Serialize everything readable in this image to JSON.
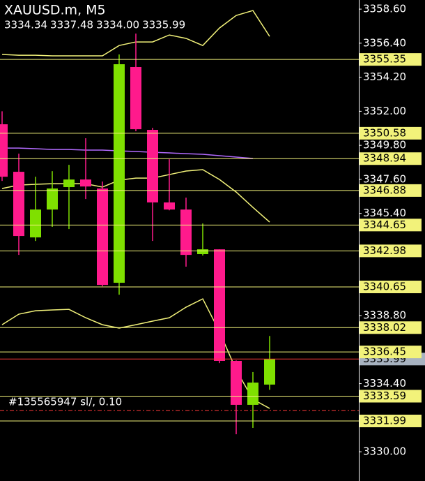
{
  "chart_data": {
    "type": "candlestick",
    "title": "XAUUSD.m, M5",
    "last_bar_labels": [
      "3334.34",
      "3337.48",
      "3334.00",
      "3335.99"
    ],
    "up_color": "#7fe000",
    "down_color": "#ff1a8c",
    "open": [
      3351.16,
      3348.09,
      3343.85,
      3345.65,
      3347.1,
      3347.59,
      3347.01,
      3340.92,
      3354.86,
      3350.8,
      3346.11,
      3345.65,
      3342.77,
      3343.08,
      3335.87,
      3333.03,
      3334.34
    ],
    "high": [
      3352.0,
      3349.26,
      3347.77,
      3348.13,
      3348.54,
      3350.26,
      3347.46,
      3355.67,
      3357.02,
      3350.93,
      3348.9,
      3346.42,
      3344.75,
      3343.08,
      3335.9,
      3335.15,
      3337.48
    ],
    "low": [
      3347.5,
      3342.72,
      3343.62,
      3344.53,
      3344.39,
      3346.33,
      3340.69,
      3340.15,
      3350.71,
      3343.62,
      3345.6,
      3341.96,
      3342.68,
      3335.73,
      3331.13,
      3331.54,
      3334.0
    ],
    "close": [
      3347.77,
      3343.94,
      3345.65,
      3347.01,
      3347.59,
      3347.14,
      3340.78,
      3355.04,
      3350.84,
      3346.11,
      3345.65,
      3342.72,
      3343.08,
      3335.87,
      3333.03,
      3334.47,
      3335.99
    ],
    "indicators": [
      {
        "color": "#f2f27a",
        "values": [
          3355.67,
          3355.62,
          3355.62,
          3355.58,
          3355.58,
          3355.58,
          3355.58,
          3356.25,
          3356.48,
          3356.48,
          3356.93,
          3356.71,
          3356.25,
          3357.38,
          3358.19,
          3358.51,
          3356.84
        ]
      },
      {
        "color": "#f2f27a",
        "values": [
          3347.01,
          3347.23,
          3347.28,
          3347.32,
          3347.32,
          3347.32,
          3347.1,
          3347.55,
          3347.68,
          3347.68,
          3347.91,
          3348.14,
          3348.23,
          3347.59,
          3346.78,
          3345.79,
          3344.84
        ]
      },
      {
        "color": "#f2f27a",
        "values": [
          3338.21,
          3338.89,
          3339.11,
          3339.16,
          3339.2,
          3338.66,
          3338.21,
          3337.99,
          3338.21,
          3338.44,
          3338.66,
          3339.34,
          3339.88,
          3337.76,
          3335.28,
          3333.39,
          3332.8
        ]
      },
      {
        "color": "#b36bff",
        "values": [
          3349.62,
          3349.62,
          3349.58,
          3349.53,
          3349.53,
          3349.49,
          3349.49,
          3349.44,
          3349.4,
          3349.35,
          3349.31,
          3349.26,
          3349.22,
          3349.13,
          3349.04,
          3348.95,
          null
        ]
      }
    ],
    "levels": [
      3355.35,
      3350.58,
      3348.94,
      3346.88,
      3344.65,
      3342.98,
      3340.65,
      3338.02,
      3336.45,
      3333.59,
      3331.99
    ],
    "level_color": "#f2f27a",
    "current_price": 3335.99,
    "current_color": "#ff3b3b",
    "orders": [
      {
        "label": "#135565947 sl/, 0.10",
        "price": 3332.66
      }
    ],
    "ylim": [
      3328.11,
      3359.19
    ],
    "yticks": [
      {
        "value": 3358.6,
        "label": "3358.60"
      },
      {
        "value": 3356.4,
        "label": "3356.40"
      },
      {
        "value": 3354.2,
        "label": "3354.20"
      },
      {
        "value": 3352,
        "label": "3352.00"
      },
      {
        "value": 3349.8,
        "label": "3349.80"
      },
      {
        "value": 3347.6,
        "label": "3347.60"
      },
      {
        "value": 3345.4,
        "label": "3345.40"
      },
      {
        "value": 3338.8,
        "label": "3338.80"
      },
      {
        "value": 3334.4,
        "label": "3334.40"
      },
      {
        "value": 3330,
        "label": "3330.00"
      }
    ]
  }
}
